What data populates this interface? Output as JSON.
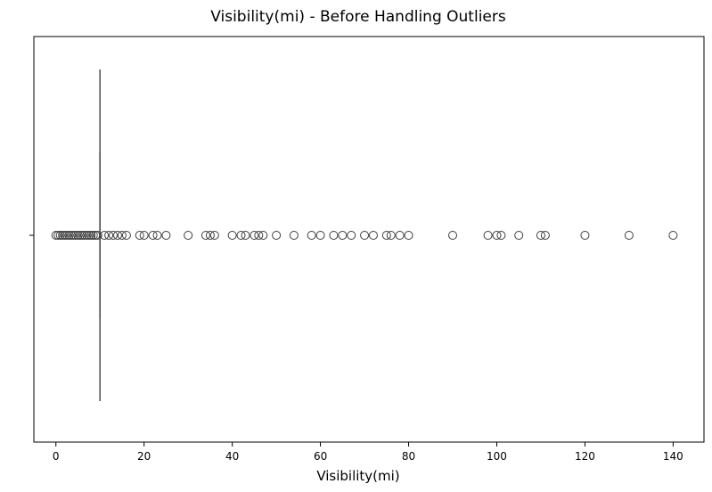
{
  "chart_data": {
    "type": "boxplot",
    "title": "Visibility(mi) - Before Handling Outliers",
    "xlabel": "Visibility(mi)",
    "ylabel": "",
    "orientation": "horizontal",
    "xlim": [
      -5,
      147
    ],
    "xticks": [
      0,
      20,
      40,
      60,
      80,
      100,
      120,
      140
    ],
    "yticks": [
      ""
    ],
    "grid": false,
    "box": {
      "q1": 10,
      "median": 10,
      "q3": 10,
      "whisker_low": 10,
      "whisker_high": 10
    },
    "outliers": [
      0,
      0.5,
      1,
      1.5,
      2,
      2.5,
      3,
      3.5,
      4,
      4.5,
      5,
      5.5,
      6,
      6.5,
      7,
      7.5,
      8,
      8.5,
      9,
      9.5,
      11,
      12,
      13,
      14,
      15,
      16,
      19,
      20,
      22,
      23,
      25,
      30,
      34,
      35,
      36,
      40,
      42,
      43,
      45,
      46,
      47,
      50,
      54,
      58,
      60,
      63,
      65,
      67,
      70,
      72,
      75,
      76,
      78,
      80,
      90,
      98,
      100,
      101,
      105,
      110,
      111,
      120,
      130,
      140
    ]
  }
}
